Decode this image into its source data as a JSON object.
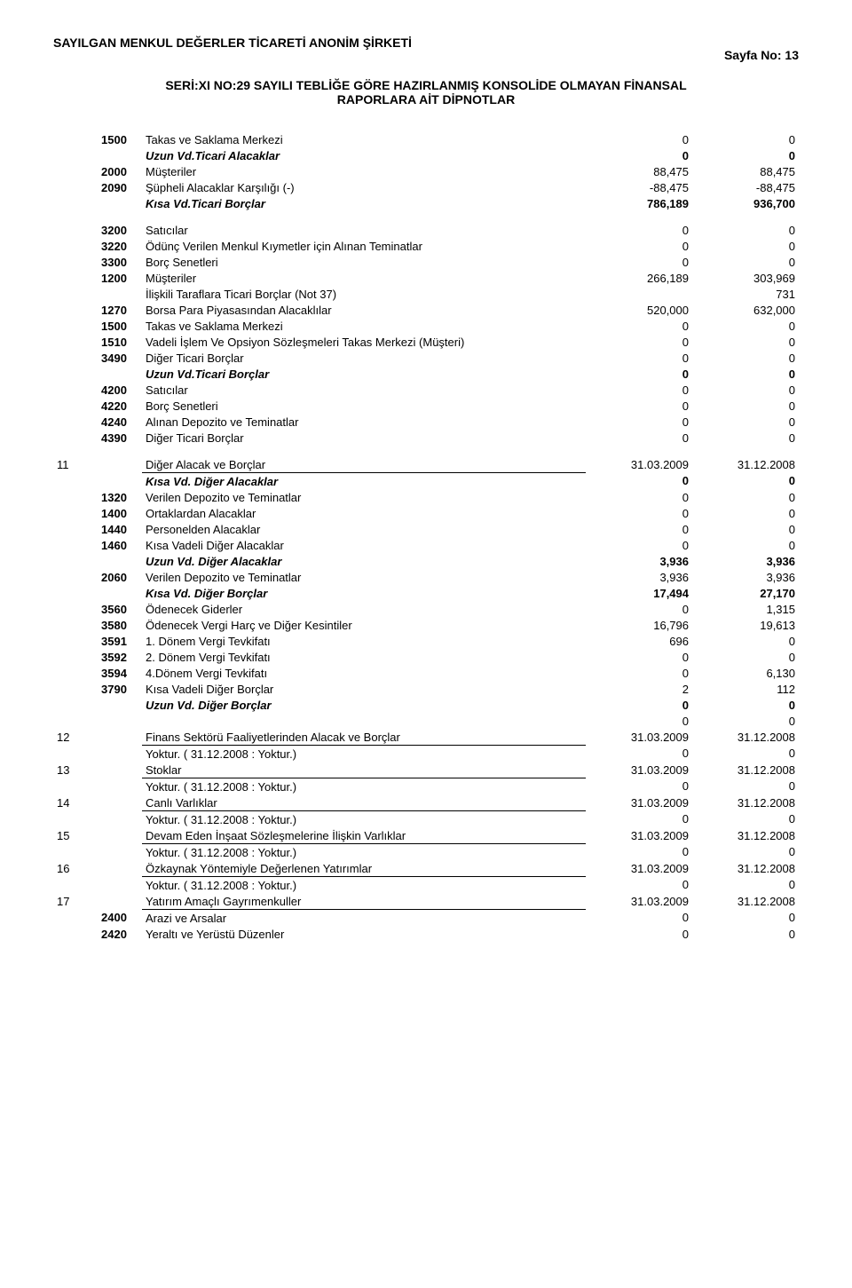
{
  "header": {
    "company": "SAYILGAN MENKUL DEĞERLER TİCARETİ ANONİM ŞİRKETİ",
    "pageNo": "Sayfa No: 13",
    "subHeader1": "SERİ:XI NO:29 SAYILI TEBLİĞE GÖRE HAZIRLANMIŞ KONSOLİDE OLMAYAN FİNANSAL",
    "subHeader2": "RAPORLARA AİT DİPNOTLAR"
  },
  "block1": [
    {
      "code": "1500",
      "label": "Takas ve Saklama Merkezi",
      "v1": "0",
      "v2": "0"
    },
    {
      "code": "",
      "label": "Uzun Vd.Ticari Alacaklar",
      "v1": "0",
      "v2": "0",
      "bi": true
    },
    {
      "code": "2000",
      "label": "Müşteriler",
      "v1": "88,475",
      "v2": "88,475"
    },
    {
      "code": "2090",
      "label": "Şüpheli Alacaklar Karşılığı (-)",
      "v1": "-88,475",
      "v2": "-88,475"
    },
    {
      "code": "",
      "label": "Kısa Vd.Ticari Borçlar",
      "v1": "786,189",
      "v2": "936,700",
      "bi": true
    }
  ],
  "block2": [
    {
      "code": "3200",
      "label": "Satıcılar",
      "v1": "0",
      "v2": "0"
    },
    {
      "code": "3220",
      "label": "Ödünç Verilen Menkul Kıymetler için Alınan Teminatlar",
      "v1": "0",
      "v2": "0"
    },
    {
      "code": "3300",
      "label": "Borç Senetleri",
      "v1": "0",
      "v2": "0"
    },
    {
      "code": "1200",
      "label": "Müşteriler",
      "v1": "266,189",
      "v2": "303,969"
    },
    {
      "code": "",
      "label": "İlişkili Taraflara Ticari Borçlar (Not 37)",
      "v1": "",
      "v2": "731"
    },
    {
      "code": "1270",
      "label": "Borsa Para Piyasasından Alacaklılar",
      "v1": "520,000",
      "v2": "632,000"
    },
    {
      "code": "1500",
      "label": "Takas ve Saklama Merkezi",
      "v1": "0",
      "v2": "0"
    },
    {
      "code": "1510",
      "label": "Vadeli İşlem Ve Opsiyon Sözleşmeleri Takas Merkezi (Müşteri)",
      "v1": "0",
      "v2": "0"
    },
    {
      "code": "3490",
      "label": "Diğer Ticari Borçlar",
      "v1": "0",
      "v2": "0"
    },
    {
      "code": "",
      "label": "Uzun Vd.Ticari Borçlar",
      "v1": "0",
      "v2": "0",
      "bi": true
    },
    {
      "code": "4200",
      "label": "Satıcılar",
      "v1": "0",
      "v2": "0"
    },
    {
      "code": "4220",
      "label": "Borç Senetleri",
      "v1": "0",
      "v2": "0"
    },
    {
      "code": "4240",
      "label": "Alınan Depozito ve Teminatlar",
      "v1": "0",
      "v2": "0"
    },
    {
      "code": "4390",
      "label": "Diğer Ticari Borçlar",
      "v1": "0",
      "v2": "0"
    }
  ],
  "sections": [
    {
      "num": "11",
      "title": "Diğer Alacak ve Borçlar",
      "d1": "31.03.2009",
      "d2": "31.12.2008",
      "rows": [
        {
          "code": "",
          "label": "Kısa Vd. Diğer Alacaklar",
          "v1": "0",
          "v2": "0",
          "bi": true
        },
        {
          "code": "1320",
          "label": "Verilen Depozito ve Teminatlar",
          "v1": "0",
          "v2": "0"
        },
        {
          "code": "1400",
          "label": "Ortaklardan Alacaklar",
          "v1": "0",
          "v2": "0"
        },
        {
          "code": "1440",
          "label": "Personelden Alacaklar",
          "v1": "0",
          "v2": "0"
        },
        {
          "code": "1460",
          "label": "Kısa Vadeli Diğer Alacaklar",
          "v1": "0",
          "v2": "0"
        },
        {
          "code": "",
          "label": "Uzun Vd. Diğer Alacaklar",
          "v1": "3,936",
          "v2": "3,936",
          "bi": true
        },
        {
          "code": "2060",
          "label": "Verilen Depozito ve Teminatlar",
          "v1": "3,936",
          "v2": "3,936"
        },
        {
          "code": "",
          "label": "Kısa Vd. Diğer Borçlar",
          "v1": "17,494",
          "v2": "27,170",
          "bi": true
        },
        {
          "code": "3560",
          "label": "Ödenecek Giderler",
          "v1": "0",
          "v2": "1,315"
        },
        {
          "code": "3580",
          "label": "Ödenecek Vergi Harç ve Diğer Kesintiler",
          "v1": "16,796",
          "v2": "19,613"
        },
        {
          "code": "3591",
          "label": "1. Dönem Vergi Tevkifatı",
          "v1": "696",
          "v2": "0"
        },
        {
          "code": "3592",
          "label": "2. Dönem Vergi Tevkifatı",
          "v1": "0",
          "v2": "0"
        },
        {
          "code": "3594",
          "label": "4.Dönem Vergi Tevkifatı",
          "v1": "0",
          "v2": "6,130"
        },
        {
          "code": "3790",
          "label": "Kısa Vadeli Diğer Borçlar",
          "v1": "2",
          "v2": "112"
        },
        {
          "code": "",
          "label": "Uzun Vd. Diğer Borçlar",
          "v1": "0",
          "v2": "0",
          "bi": true
        },
        {
          "code": "",
          "label": "",
          "v1": "0",
          "v2": "0"
        }
      ]
    },
    {
      "num": "12",
      "title": "Finans Sektörü Faaliyetlerinden Alacak ve Borçlar",
      "d1": "31.03.2009",
      "d2": "31.12.2008",
      "rows": [
        {
          "code": "",
          "label": "Yoktur. ( 31.12.2008 : Yoktur.)",
          "v1": "0",
          "v2": "0"
        }
      ]
    },
    {
      "num": "13",
      "title": "Stoklar",
      "d1": "31.03.2009",
      "d2": "31.12.2008",
      "rows": [
        {
          "code": "",
          "label": "Yoktur. ( 31.12.2008 : Yoktur.)",
          "v1": "0",
          "v2": "0"
        }
      ]
    },
    {
      "num": "14",
      "title": "Canlı Varlıklar",
      "d1": "31.03.2009",
      "d2": "31.12.2008",
      "rows": [
        {
          "code": "",
          "label": "Yoktur. ( 31.12.2008 : Yoktur.)",
          "v1": "0",
          "v2": "0"
        }
      ]
    },
    {
      "num": "15",
      "title": "Devam Eden İnşaat Sözleşmelerine İlişkin Varlıklar",
      "d1": "31.03.2009",
      "d2": "31.12.2008",
      "rows": [
        {
          "code": "",
          "label": "Yoktur. ( 31.12.2008 : Yoktur.)",
          "v1": "0",
          "v2": "0"
        }
      ]
    },
    {
      "num": "16",
      "title": "Özkaynak Yöntemiyle Değerlenen Yatırımlar",
      "d1": "31.03.2009",
      "d2": "31.12.2008",
      "rows": [
        {
          "code": "",
          "label": "Yoktur. ( 31.12.2008 : Yoktur.)",
          "v1": "0",
          "v2": "0"
        }
      ]
    },
    {
      "num": "17",
      "title": "Yatırım Amaçlı Gayrımenkuller",
      "d1": "31.03.2009",
      "d2": "31.12.2008",
      "rows": [
        {
          "code": "2400",
          "label": "Arazi ve Arsalar",
          "v1": "0",
          "v2": "0"
        },
        {
          "code": "2420",
          "label": "Yeraltı ve Yerüstü Düzenler",
          "v1": "0",
          "v2": "0"
        }
      ]
    }
  ]
}
